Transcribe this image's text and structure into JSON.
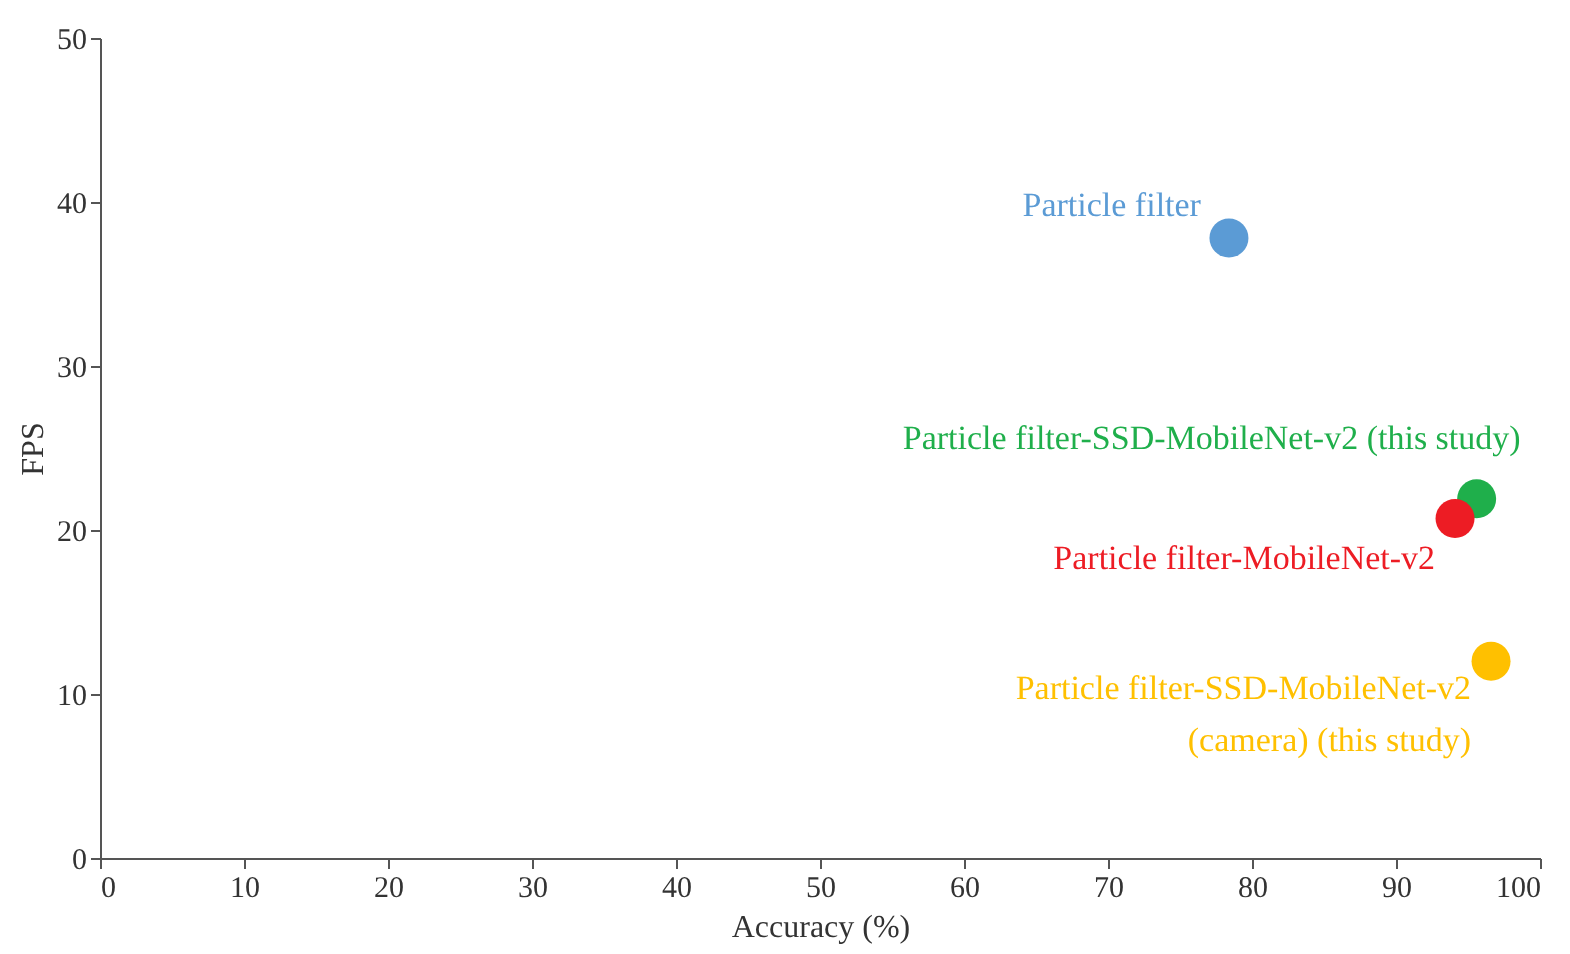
{
  "chart_data": {
    "type": "scatter",
    "xlabel": "Accuracy (%)",
    "ylabel": "FPS",
    "xlim": [
      0,
      100
    ],
    "xticks": [
      0,
      10,
      20,
      30,
      40,
      50,
      60,
      70,
      80,
      90,
      100
    ],
    "ylim": [
      0,
      50
    ],
    "yticks": [
      0,
      10,
      20,
      30,
      40,
      50
    ],
    "grid": false,
    "legend": false,
    "marker": "circle",
    "series": [
      {
        "name": "Particle filter",
        "color": "#5b9bd5",
        "x": [
          78.4
        ],
        "values": [
          37.8
        ]
      },
      {
        "name": "Particle filter-SSD-MobileNet-v2 (this study)",
        "color": "#1faf4b",
        "x": [
          95.6
        ],
        "values": [
          21.9
        ]
      },
      {
        "name": "Particle filter-MobileNet-v2",
        "color": "#ed1c24",
        "x": [
          94.1
        ],
        "values": [
          20.7
        ]
      },
      {
        "name": "Particle filter-SSD-MobileNet-v2\n(camera) (this study)",
        "color": "#ffc000",
        "x": [
          96.6
        ],
        "values": [
          12.0
        ]
      }
    ]
  }
}
